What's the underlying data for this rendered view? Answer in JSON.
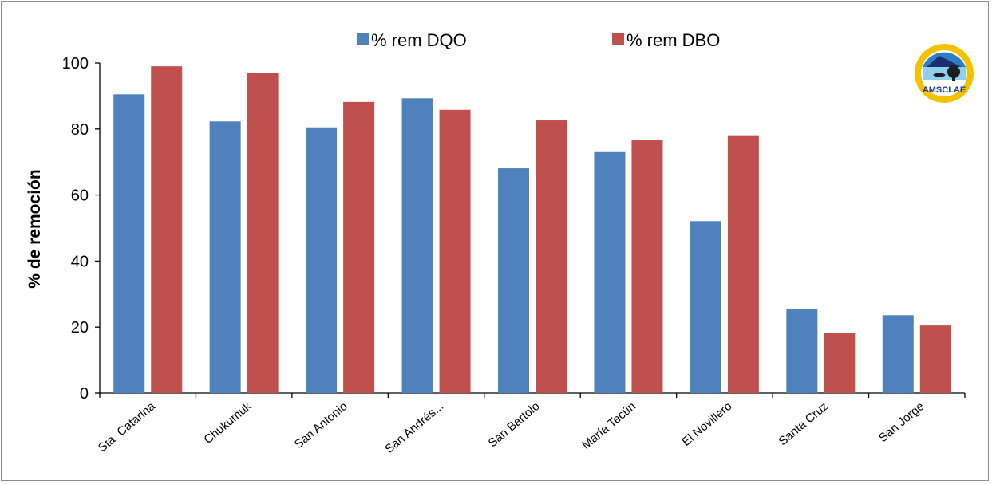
{
  "chart_data": {
    "type": "bar",
    "categories": [
      "Sta. Catarina",
      "Chukumuk",
      "San Antonio",
      "San Andrés...",
      "San Bartolo",
      "María Tecún",
      "El Novillero",
      "Santa Cruz",
      "San Jorge"
    ],
    "series": [
      {
        "name": "% rem DQO",
        "color": "#4f81bd",
        "values": [
          90.5,
          82.3,
          80.5,
          89.3,
          68.1,
          73.0,
          52.1,
          25.6,
          23.6
        ]
      },
      {
        "name": "% rem DBO",
        "color": "#c0504d",
        "values": [
          99.0,
          97.0,
          88.2,
          85.8,
          82.6,
          76.8,
          78.1,
          18.3,
          20.5
        ]
      }
    ],
    "title": "",
    "xlabel": "",
    "ylabel": "% de remoción",
    "ylim": [
      0,
      100
    ],
    "yticks": [
      "0",
      "20",
      "40",
      "60",
      "80",
      "100"
    ],
    "grid": false,
    "legend": "top"
  },
  "logo": {
    "text": "AMSCLAE"
  }
}
